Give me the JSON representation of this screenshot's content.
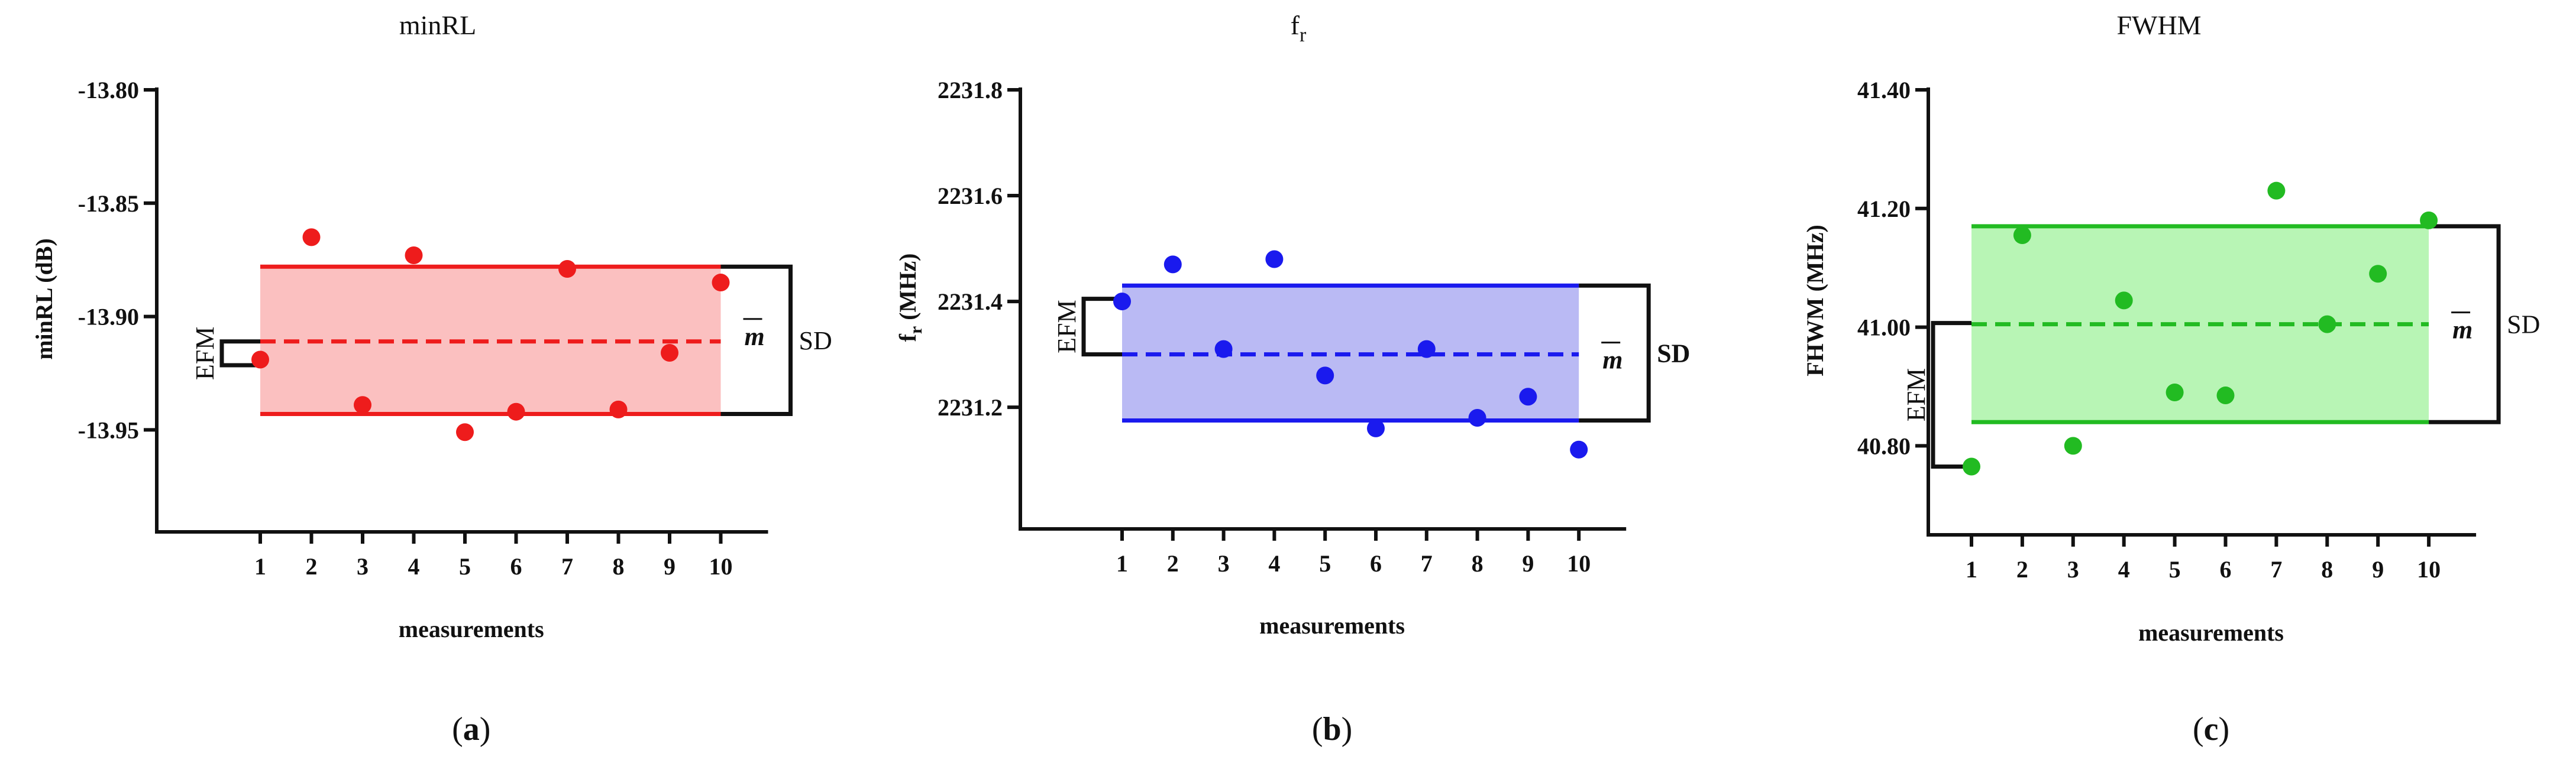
{
  "chart_data": [
    {
      "type": "scatter",
      "panel_label": "(a)",
      "panel_letter": "a",
      "title": "minRL",
      "title_sub": "",
      "ylabel": "minRL (dB)",
      "xlabel": "measurements",
      "x": [
        1,
        2,
        3,
        4,
        5,
        6,
        7,
        8,
        9,
        10
      ],
      "y": [
        -13.919,
        -13.865,
        -13.939,
        -13.873,
        -13.951,
        -13.942,
        -13.879,
        -13.941,
        -13.916,
        -13.885
      ],
      "ylim": [
        -13.995,
        -13.8
      ],
      "yticks": [
        "-13.80",
        "-13.85",
        "-13.90",
        "-13.95"
      ],
      "ytick_values": [
        -13.8,
        -13.85,
        -13.9,
        -13.95
      ],
      "mean": -13.911,
      "sd_upper": -13.878,
      "sd_lower": -13.943,
      "efm_upper": -13.911,
      "efm_lower": -13.9215,
      "color": "#ee1c1c",
      "band_color": "#fbc0c0",
      "efm_label": "EFM",
      "sd_label": "SD",
      "sd_bold": false,
      "mean_label": "m"
    },
    {
      "type": "scatter",
      "panel_label": "(b)",
      "panel_letter": "b",
      "title": "f",
      "title_sub": "r",
      "ylabel": "f",
      "ylabel_sub": "r",
      "ylabel_unit": " (MHz)",
      "xlabel": "measurements",
      "x": [
        1,
        2,
        3,
        4,
        5,
        6,
        7,
        8,
        9,
        10
      ],
      "y": [
        2231.4,
        2231.47,
        2231.31,
        2231.48,
        2231.26,
        2231.16,
        2231.31,
        2231.18,
        2231.22,
        2231.12
      ],
      "ylim": [
        2230.97,
        2231.8
      ],
      "yticks": [
        "2231.8",
        "2231.6",
        "2231.4",
        "2231.2"
      ],
      "ytick_values": [
        2231.8,
        2231.6,
        2231.4,
        2231.2
      ],
      "mean": 2231.3,
      "sd_upper": 2231.43,
      "sd_lower": 2231.175,
      "efm_upper": 2231.405,
      "efm_lower": 2231.3,
      "color": "#1a1aee",
      "band_color": "#babaf4",
      "efm_label": "EFM",
      "sd_label": "SD",
      "sd_bold": true,
      "mean_label": "m"
    },
    {
      "type": "scatter",
      "panel_label": "(c)",
      "panel_letter": "c",
      "title": "FWHM",
      "title_sub": "",
      "ylabel": "FHWM (MHz)",
      "xlabel": "measurements",
      "x": [
        1,
        2,
        3,
        4,
        5,
        6,
        7,
        8,
        9,
        10
      ],
      "y": [
        40.765,
        41.155,
        40.8,
        41.045,
        40.89,
        40.885,
        41.23,
        41.005,
        41.09,
        41.18
      ],
      "ylim": [
        40.65,
        41.4
      ],
      "yticks": [
        "41.40",
        "41.20",
        "41.00",
        "40.80"
      ],
      "ytick_values": [
        41.4,
        41.2,
        41.0,
        40.8
      ],
      "mean": 41.005,
      "sd_upper": 41.17,
      "sd_lower": 40.84,
      "efm_upper": 41.007,
      "efm_lower": 40.765,
      "color": "#22bb22",
      "band_color": "#b8f5b5",
      "efm_label": "EFM",
      "sd_label": "SD",
      "sd_bold": false,
      "mean_label": "m"
    }
  ]
}
